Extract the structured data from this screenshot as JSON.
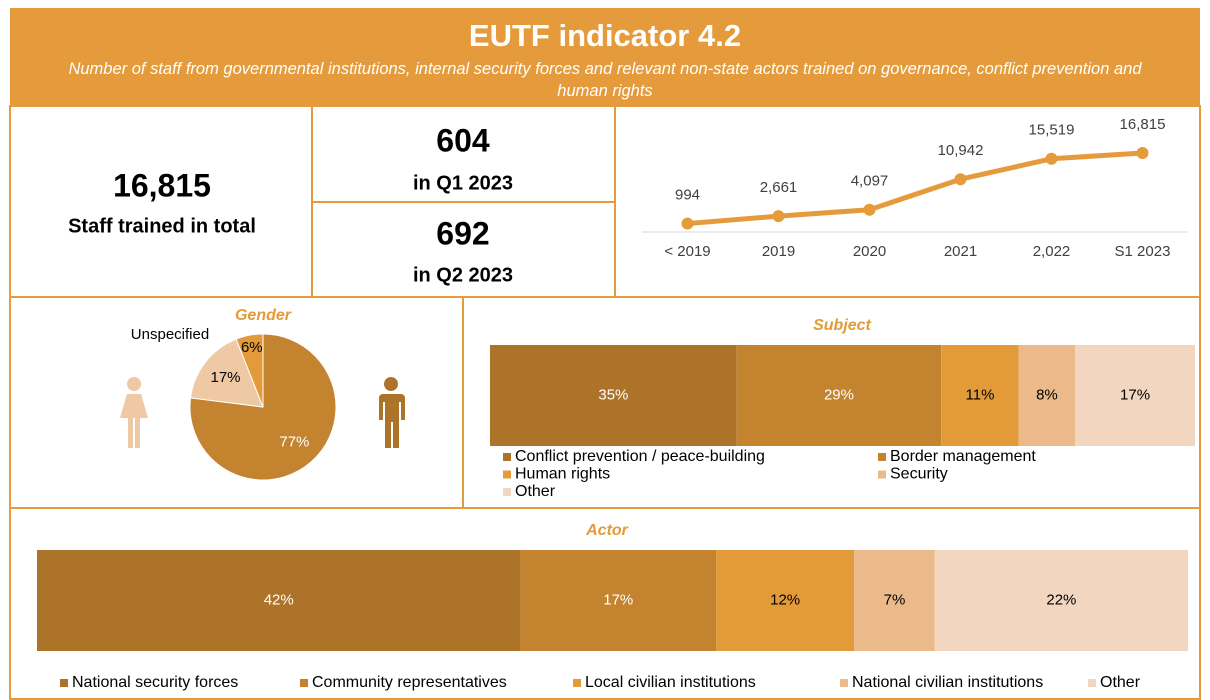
{
  "header": {
    "title": "EUTF indicator 4.2",
    "subtitle": "Number of staff from governmental  institutions, internal security forces and relevant non-state actors trained on governance,  conflict prevention and human rights"
  },
  "kpis": {
    "total": {
      "value": "16,815",
      "label": "Staff trained in total"
    },
    "q1": {
      "value": "604",
      "label": "in Q1 2023"
    },
    "q2": {
      "value": "692",
      "label": "in Q2 2023"
    }
  },
  "chart_data": [
    {
      "type": "line",
      "categories": [
        "< 2019",
        "2019",
        "2020",
        "2021",
        "2,022",
        "S1 2023"
      ],
      "values": [
        994,
        2661,
        4097,
        10942,
        15519,
        16815
      ],
      "value_labels": [
        "994",
        "2,661",
        "4,097",
        "10,942",
        "15,519",
        "16,815"
      ],
      "color": "#e59b3b"
    },
    {
      "type": "pie",
      "title": "Gender",
      "categories": [
        null,
        null,
        "Unspecified"
      ],
      "values": [
        77,
        17,
        6
      ],
      "value_labels": [
        "77%",
        "17%",
        "6%"
      ],
      "colors": [
        "#c4832f",
        "#efc8a4",
        "#e39b3a"
      ]
    },
    {
      "type": "bar",
      "orientation": "horizontal",
      "stacked": true,
      "title": "Subject",
      "categories": [
        null
      ],
      "series": [
        {
          "name": "Conflict prevention / peace-building",
          "color": "#ad7429",
          "values": [
            35
          ],
          "value_labels": [
            "35%"
          ]
        },
        {
          "name": "Border management",
          "color": "#c4832f",
          "values": [
            29
          ],
          "value_labels": [
            "29%"
          ]
        },
        {
          "name": "Human rights",
          "color": "#e39b3a",
          "values": [
            11
          ],
          "value_labels": [
            "11%"
          ]
        },
        {
          "name": "Security",
          "color": "#ebb98a",
          "values": [
            8
          ],
          "value_labels": [
            "8%"
          ]
        },
        {
          "name": "Other",
          "color": "#f2d6bf",
          "values": [
            17
          ],
          "value_labels": [
            "17%"
          ]
        }
      ]
    },
    {
      "type": "bar",
      "orientation": "horizontal",
      "stacked": true,
      "title": "Actor",
      "categories": [
        null
      ],
      "series": [
        {
          "name": "National security forces",
          "color": "#ad7429",
          "values": [
            42
          ],
          "value_labels": [
            "42%"
          ]
        },
        {
          "name": "Community representatives",
          "color": "#c4832f",
          "values": [
            17
          ],
          "value_labels": [
            "17%"
          ]
        },
        {
          "name": "Local civilian institutions",
          "color": "#e39b3a",
          "values": [
            12
          ],
          "value_labels": [
            "12%"
          ]
        },
        {
          "name": "National civilian institutions",
          "color": "#ebb98a",
          "values": [
            7
          ],
          "value_labels": [
            "7%"
          ]
        },
        {
          "name": "Other",
          "color": "#f2d6bf",
          "values": [
            22
          ],
          "value_labels": [
            "22%"
          ]
        }
      ]
    }
  ]
}
